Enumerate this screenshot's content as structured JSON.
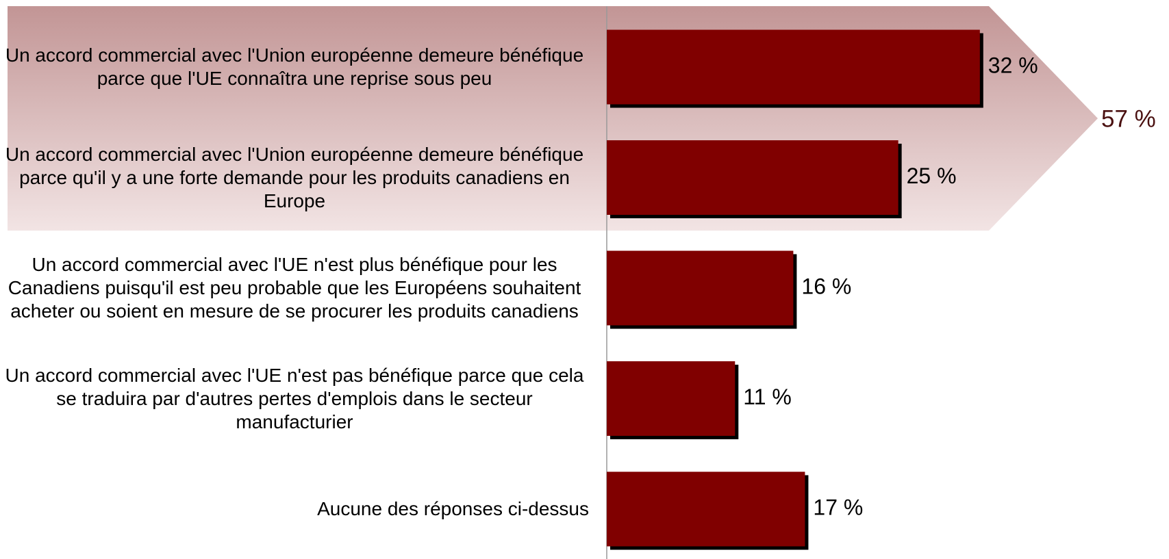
{
  "chart_data": {
    "type": "bar",
    "orientation": "horizontal",
    "categories": [
      "Un accord commercial avec l'Union européenne demeure bénéfique parce que l'UE connaîtra une reprise sous peu",
      "Un accord commercial avec l'Union européenne demeure bénéfique parce qu'il y a une forte demande pour les produits canadiens en Europe",
      "Un accord commercial avec l'UE n'est plus bénéfique pour les Canadiens puisqu'il est peu probable que les Européens souhaitent acheter ou soient en mesure de se procurer les produits canadiens",
      "Un accord commercial avec l'UE n'est pas bénéfique parce que cela se traduira par d'autres pertes d'emplois dans le secteur manufacturier",
      "Aucune des réponses ci-dessus"
    ],
    "values": [
      32,
      25,
      16,
      11,
      17
    ],
    "value_labels": [
      "32 %",
      "25 %",
      "16 %",
      "11 %",
      "17 %"
    ],
    "color": "#800000",
    "xlim": [
      0,
      40
    ],
    "annotations": [
      {
        "text": "57 %",
        "color": "#4a1010"
      }
    ]
  }
}
